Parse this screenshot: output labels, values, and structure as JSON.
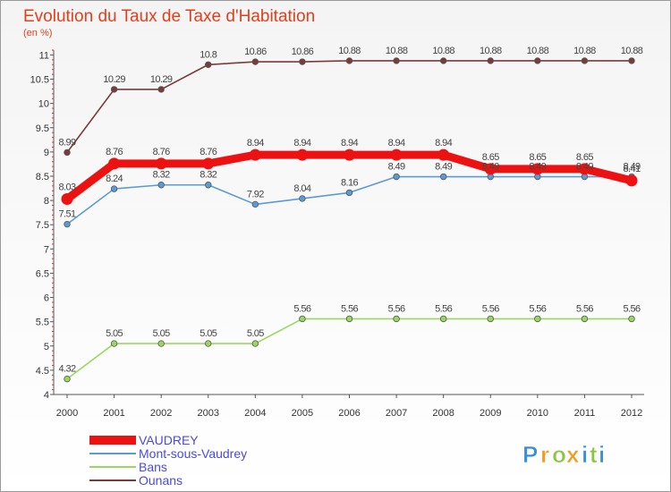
{
  "chart_data": {
    "type": "line",
    "title": "Evolution du Taux de Taxe d'Habitation",
    "subtitle": "(en %)",
    "xlabel": "",
    "ylabel": "",
    "ylim": [
      4,
      11.1
    ],
    "yticks": [
      "4",
      "4.5",
      "5",
      "5.5",
      "6",
      "6.5",
      "7",
      "7.5",
      "8",
      "8.5",
      "9",
      "9.5",
      "10",
      "10.5",
      "11"
    ],
    "categories": [
      "2000",
      "2001",
      "2002",
      "2003",
      "2004",
      "2005",
      "2006",
      "2007",
      "2008",
      "2009",
      "2010",
      "2011",
      "2012"
    ],
    "grid": false,
    "legend_position": "bottom-left",
    "series": [
      {
        "name": "VAUDREY",
        "color": "#ee1111",
        "values": [
          8.03,
          8.76,
          8.76,
          8.76,
          8.94,
          8.94,
          8.94,
          8.94,
          8.94,
          8.65,
          8.65,
          8.65,
          8.41
        ],
        "labels": [
          "8.03",
          "8.76",
          "8.76",
          "8.76",
          "8.94",
          "8.94",
          "8.94",
          "8.94",
          "8.94",
          "8.65",
          "8.65",
          "8.65",
          "8.41"
        ]
      },
      {
        "name": "Mont-sous-Vaudrey",
        "color": "#5b9bd5",
        "values": [
          7.51,
          8.24,
          8.32,
          8.32,
          7.92,
          8.04,
          8.16,
          8.49,
          8.49,
          8.49,
          8.49,
          8.49,
          8.49
        ],
        "labels": [
          "7.51",
          "8.24",
          "8.32",
          "8.32",
          "7.92",
          "8.04",
          "8.16",
          "8.49",
          "8.49",
          "8.49",
          "8.49",
          "8.49",
          "8.49"
        ]
      },
      {
        "name": "Bans",
        "color": "#99d85f",
        "values": [
          4.32,
          5.05,
          5.05,
          5.05,
          5.05,
          5.56,
          5.56,
          5.56,
          5.56,
          5.56,
          5.56,
          5.56,
          5.56
        ],
        "labels": [
          "4.32",
          "5.05",
          "5.05",
          "5.05",
          "5.05",
          "5.56",
          "5.56",
          "5.56",
          "5.56",
          "5.56",
          "5.56",
          "5.56",
          "5.56"
        ]
      },
      {
        "name": "Ounans",
        "color": "#7a3b3b",
        "values": [
          8.99,
          10.29,
          10.29,
          10.8,
          10.86,
          10.86,
          10.88,
          10.88,
          10.88,
          10.88,
          10.88,
          10.88,
          10.88
        ],
        "labels": [
          "8.99",
          "10.29",
          "10.29",
          "10.8",
          "10.86",
          "10.86",
          "10.88",
          "10.88",
          "10.88",
          "10.88",
          "10.88",
          "10.88",
          "10.88"
        ]
      }
    ]
  },
  "logo": {
    "letters": [
      "P",
      "r",
      "o",
      "x",
      "i",
      "t",
      "i"
    ],
    "colors": [
      "#3a8fd8",
      "#f29a1b",
      "#8cc63f",
      "#f29a1b",
      "#3a8fd8",
      "#8cc63f",
      "#3a8fd8"
    ]
  }
}
